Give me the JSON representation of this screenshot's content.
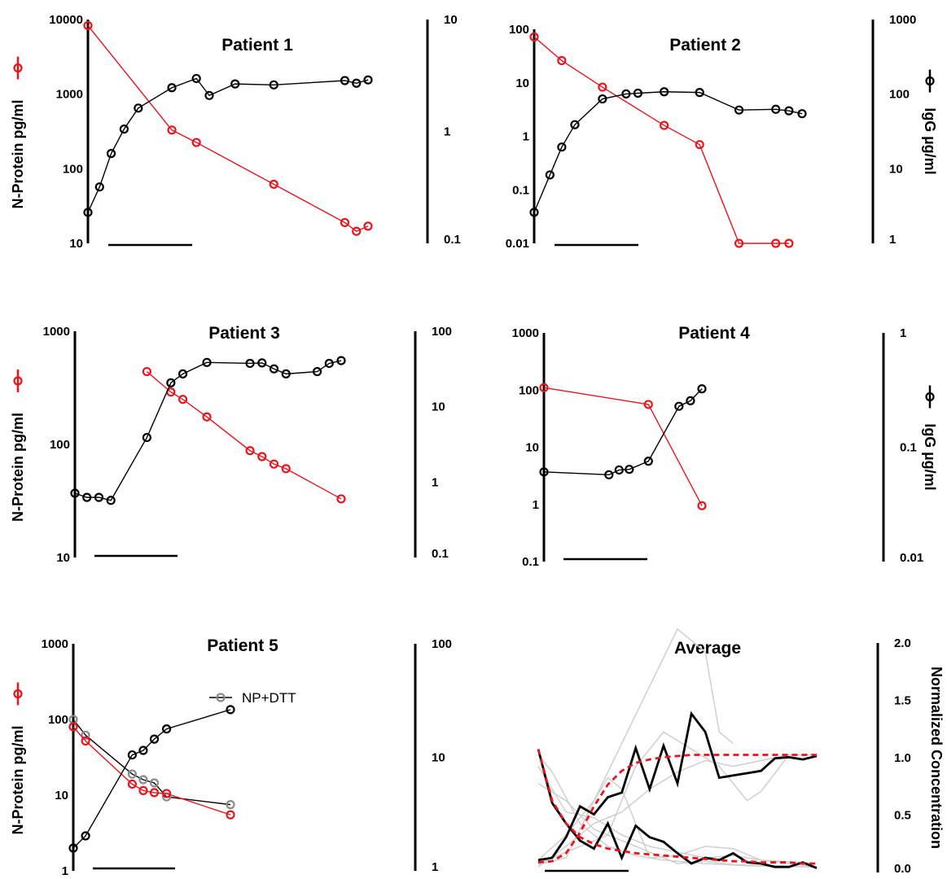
{
  "colors": {
    "n_protein": "#e8141e",
    "igg": "#000000",
    "np_dtt": "#8a8a8a",
    "individual": "#cfcfcf",
    "fit": "#e8141e"
  },
  "labels": {
    "n_protein_axis": "N-Protein pg/ml",
    "igg_axis": "IgG µg/ml",
    "normalized_axis": "Normalized Concentration",
    "np_dtt_legend": "NP+DTT"
  },
  "chart_data": [
    {
      "type": "line",
      "title": "Patient 1",
      "yscale": "log",
      "left_ticks": [
        "10",
        "100",
        "1000",
        "10000"
      ],
      "right_ticks": [
        "0.1",
        "1",
        "10"
      ],
      "series": [
        {
          "points": [
            [
              0,
              26
            ],
            [
              0.45,
              57
            ],
            [
              0.9,
              160
            ],
            [
              1.4,
              340
            ],
            [
              1.95,
              650
            ],
            [
              3.25,
              1220
            ],
            [
              4.2,
              1620
            ],
            [
              4.7,
              960
            ],
            [
              5.7,
              1370
            ],
            [
              7.2,
              1330
            ],
            [
              9.95,
              1520
            ],
            [
              10.4,
              1400
            ],
            [
              10.85,
              1550
            ]
          ]
        },
        {
          "points": [
            [
              0,
              8300
            ],
            [
              3.25,
              330
            ],
            [
              4.2,
              225
            ],
            [
              7.2,
              62
            ],
            [
              9.95,
              19
            ],
            [
              10.4,
              14.5
            ],
            [
              10.85,
              17
            ]
          ]
        }
      ]
    },
    {
      "type": "line",
      "title": "Patient 2",
      "yscale": "log",
      "left_ticks": [
        "0.01",
        "0.1",
        "1",
        "10",
        "100"
      ],
      "right_ticks": [
        "1",
        "10",
        "100",
        "1000"
      ],
      "series": [
        {
          "points": [
            [
              0,
              0.038
            ],
            [
              0.6,
              0.19
            ],
            [
              1.05,
              0.63
            ],
            [
              1.55,
              1.65
            ],
            [
              2.6,
              5
            ],
            [
              3.5,
              6.2
            ],
            [
              3.95,
              6.4
            ],
            [
              4.95,
              6.8
            ],
            [
              6.3,
              6.6
            ],
            [
              7.8,
              3.1
            ],
            [
              9.2,
              3.2
            ],
            [
              9.7,
              3
            ],
            [
              10.2,
              2.65
            ]
          ]
        },
        {
          "points": [
            [
              0,
              72
            ],
            [
              1.05,
              26
            ],
            [
              2.6,
              8.3
            ],
            [
              4.95,
              1.6
            ],
            [
              6.3,
              0.7
            ],
            [
              7.8,
              0.01
            ],
            [
              9.2,
              0.01
            ],
            [
              9.7,
              0.01
            ]
          ]
        }
      ]
    },
    {
      "type": "line",
      "title": "Patient 3",
      "yscale": "log",
      "left_ticks": [
        "10",
        "100",
        "1000"
      ],
      "right_ticks": [
        "0.1",
        "1",
        "10",
        "100"
      ],
      "series": [
        {
          "points": [
            [
              0,
              37
            ],
            [
              0.5,
              34
            ],
            [
              1,
              34
            ],
            [
              1.5,
              32
            ],
            [
              3,
              115
            ],
            [
              4,
              350
            ],
            [
              4.5,
              420
            ],
            [
              5.5,
              530
            ],
            [
              7.3,
              520
            ],
            [
              7.8,
              525
            ],
            [
              8.3,
              465
            ],
            [
              8.8,
              420
            ],
            [
              10.1,
              440
            ],
            [
              10.6,
              520
            ],
            [
              11.1,
              550
            ]
          ]
        },
        {
          "points": [
            [
              3,
              440
            ],
            [
              4,
              290
            ],
            [
              4.5,
              250
            ],
            [
              5.5,
              175
            ],
            [
              7.3,
              88
            ],
            [
              7.8,
              78
            ],
            [
              8.3,
              67
            ],
            [
              8.8,
              61
            ],
            [
              11.1,
              33
            ]
          ]
        }
      ]
    },
    {
      "type": "line",
      "title": "Patient 4",
      "yscale": "log",
      "left_ticks": [
        "0.1",
        "1",
        "10",
        "100",
        "1000"
      ],
      "right_ticks": [
        "0.01",
        "0.1",
        "1"
      ],
      "series": [
        {
          "points": [
            [
              0,
              3.7
            ],
            [
              2.55,
              3.3
            ],
            [
              2.95,
              4
            ],
            [
              3.35,
              4.1
            ],
            [
              4.1,
              5.7
            ],
            [
              5.3,
              52
            ],
            [
              5.75,
              65
            ],
            [
              6.2,
              105
            ]
          ]
        },
        {
          "points": [
            [
              0,
              110
            ],
            [
              4.1,
              56
            ],
            [
              6.2,
              0.95
            ]
          ]
        }
      ]
    },
    {
      "type": "line",
      "title": "Patient 5",
      "yscale": "log",
      "left_ticks": [
        "1",
        "10",
        "100",
        "1000"
      ],
      "right_ticks": [
        "1",
        "10",
        "100"
      ],
      "series": [
        {
          "points": [
            [
              0,
              2
            ],
            [
              0.5,
              2.9
            ],
            [
              2.4,
              34
            ],
            [
              2.85,
              39
            ],
            [
              3.3,
              55
            ],
            [
              3.8,
              75
            ],
            [
              6.4,
              135
            ]
          ]
        },
        {
          "points": [
            [
              0,
              80
            ],
            [
              0.5,
              52
            ],
            [
              2.4,
              14
            ],
            [
              2.85,
              11.5
            ],
            [
              3.3,
              10.8
            ],
            [
              3.8,
              10.5
            ],
            [
              6.4,
              5.5
            ]
          ]
        },
        {
          "name": "NP+DTT",
          "points": [
            [
              0,
              100
            ],
            [
              0.5,
              62
            ],
            [
              2.4,
              19
            ],
            [
              2.85,
              16
            ],
            [
              3.3,
              14.5
            ],
            [
              3.8,
              9.5
            ],
            [
              6.4,
              7.5
            ]
          ]
        }
      ]
    },
    {
      "type": "line",
      "title": "Average",
      "yscale": "linear",
      "ylim": [
        0,
        2
      ],
      "left_ticks": [],
      "right_ticks": [
        "0.0",
        "0.5",
        "1.0",
        "1.5",
        "2.0"
      ],
      "series": [
        {
          "points": [
            [
              0,
              0.08
            ],
            [
              1,
              0.1
            ],
            [
              2,
              0.28
            ],
            [
              3,
              0.55
            ],
            [
              4,
              0.48
            ],
            [
              5,
              0.63
            ],
            [
              6,
              0.67
            ],
            [
              7,
              1.06
            ],
            [
              8,
              0.7
            ],
            [
              9,
              1.08
            ],
            [
              10,
              0.75
            ],
            [
              11,
              1.36
            ],
            [
              12,
              1.2
            ],
            [
              13,
              0.8
            ],
            [
              14,
              0.82
            ],
            [
              15,
              0.84
            ],
            [
              16,
              0.86
            ],
            [
              17,
              0.97
            ],
            [
              18,
              0.98
            ],
            [
              19,
              0.96
            ],
            [
              20,
              0.99
            ]
          ]
        },
        {
          "points": [
            [
              0,
              1.05
            ],
            [
              1,
              0.58
            ],
            [
              2,
              0.4
            ],
            [
              3,
              0.25
            ],
            [
              4,
              0.18
            ],
            [
              5,
              0.4
            ],
            [
              6,
              0.1
            ],
            [
              7,
              0.38
            ],
            [
              8,
              0.28
            ],
            [
              9,
              0.24
            ],
            [
              10,
              0.14
            ],
            [
              11,
              0.05
            ],
            [
              12,
              0.1
            ],
            [
              13,
              0.08
            ],
            [
              14,
              0.14
            ],
            [
              15,
              0.06
            ],
            [
              16,
              0.05
            ],
            [
              17,
              0.02
            ],
            [
              18,
              0.02
            ],
            [
              19,
              0.06
            ],
            [
              20,
              0.01
            ]
          ]
        },
        {
          "points": [
            [
              0,
              0.06
            ],
            [
              1,
              0.07
            ],
            [
              2,
              0.14
            ],
            [
              3,
              0.32
            ],
            [
              4,
              0.55
            ],
            [
              5,
              0.74
            ],
            [
              6,
              0.86
            ],
            [
              7,
              0.93
            ],
            [
              8,
              0.96
            ],
            [
              9,
              0.98
            ],
            [
              10,
              0.99
            ],
            [
              11,
              1
            ],
            [
              12,
              1
            ],
            [
              13,
              1
            ],
            [
              14,
              1
            ],
            [
              15,
              1
            ],
            [
              16,
              1
            ],
            [
              17,
              1
            ],
            [
              18,
              1
            ],
            [
              19,
              1
            ],
            [
              20,
              1
            ]
          ]
        },
        {
          "points": [
            [
              0,
              1.05
            ],
            [
              1,
              0.6
            ],
            [
              2,
              0.4
            ],
            [
              3,
              0.28
            ],
            [
              4,
              0.22
            ],
            [
              5,
              0.18
            ],
            [
              6,
              0.16
            ],
            [
              7,
              0.14
            ],
            [
              8,
              0.13
            ],
            [
              9,
              0.12
            ],
            [
              10,
              0.11
            ],
            [
              11,
              0.1
            ],
            [
              12,
              0.09
            ],
            [
              13,
              0.08
            ],
            [
              14,
              0.07
            ],
            [
              15,
              0.07
            ],
            [
              16,
              0.06
            ],
            [
              17,
              0.06
            ],
            [
              18,
              0.06
            ],
            [
              19,
              0.05
            ],
            [
              20,
              0.05
            ]
          ]
        },
        {
          "points": [
            [
              0,
              0.08
            ],
            [
              2,
              0.3
            ],
            [
              4,
              0.6
            ],
            [
              6,
              1.1
            ],
            [
              8,
              1.6
            ],
            [
              10,
              2.1
            ],
            [
              12,
              1.9
            ],
            [
              13,
              1.2
            ],
            [
              14,
              1.1
            ]
          ]
        },
        {
          "points": [
            [
              0,
              0.05
            ],
            [
              3,
              0.2
            ],
            [
              5,
              0.3
            ],
            [
              7,
              0.9
            ],
            [
              9,
              1.2
            ],
            [
              11,
              1.05
            ],
            [
              13,
              0.9
            ],
            [
              15,
              0.6
            ],
            [
              16,
              0.68
            ],
            [
              18,
              1.0
            ],
            [
              20,
              1.0
            ]
          ]
        },
        {
          "points": [
            [
              0,
              0.02
            ],
            [
              2,
              0.2
            ],
            [
              4,
              0.4
            ],
            [
              6,
              0.5
            ],
            [
              8,
              0.7
            ],
            [
              10,
              0.85
            ],
            [
              12,
              0.95
            ],
            [
              14,
              0.9
            ],
            [
              16,
              0.95
            ],
            [
              18,
              1.0
            ],
            [
              20,
              1.0
            ]
          ]
        },
        {
          "points": [
            [
              0,
              0.04
            ],
            [
              2,
              0.1
            ],
            [
              4,
              0.6
            ],
            [
              5,
              0.8
            ],
            [
              6,
              0.7
            ],
            [
              8,
              0.1
            ],
            [
              10,
              0.12
            ],
            [
              12,
              0.2
            ],
            [
              14,
              0.18
            ],
            [
              16,
              0.08
            ],
            [
              20,
              0.02
            ]
          ]
        },
        {
          "points": [
            [
              0,
              1.0
            ],
            [
              1,
              0.85
            ],
            [
              3,
              0.4
            ],
            [
              5,
              0.2
            ],
            [
              7,
              0.12
            ],
            [
              9,
              0.08
            ],
            [
              12,
              0.05
            ],
            [
              15,
              0.03
            ],
            [
              20,
              0.02
            ]
          ]
        },
        {
          "points": [
            [
              0,
              0.9
            ],
            [
              2,
              0.5
            ],
            [
              4,
              0.45
            ],
            [
              6,
              0.3
            ],
            [
              8,
              0.2
            ],
            [
              10,
              0.15
            ],
            [
              12,
              0.1
            ],
            [
              14,
              0.12
            ],
            [
              16,
              0.08
            ],
            [
              20,
              0.05
            ]
          ]
        },
        {
          "points": [
            [
              0,
              0.75
            ],
            [
              2,
              0.6
            ],
            [
              4,
              0.35
            ],
            [
              6,
              0.25
            ],
            [
              8,
              0.15
            ],
            [
              10,
              0.05
            ],
            [
              12,
              0.07
            ],
            [
              14,
              0.04
            ],
            [
              20,
              0.02
            ]
          ]
        }
      ]
    }
  ]
}
